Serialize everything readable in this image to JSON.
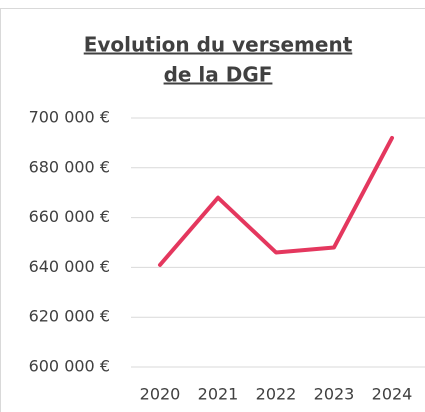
{
  "chart_data": {
    "type": "line",
    "title": [
      "Evolution du versement",
      "de la DGF"
    ],
    "categories": [
      "2020",
      "2021",
      "2022",
      "2023",
      "2024"
    ],
    "series": [
      {
        "name": "DGF",
        "color": "#e4375e",
        "values": [
          641000,
          668000,
          646000,
          648000,
          692000
        ]
      }
    ],
    "ylim": [
      600000,
      700000
    ],
    "yticks": [
      {
        "value": 600000,
        "label": "600 000 €"
      },
      {
        "value": 620000,
        "label": "620 000 €"
      },
      {
        "value": 640000,
        "label": "640 000 €"
      },
      {
        "value": 660000,
        "label": "660 000 €"
      },
      {
        "value": 680000,
        "label": "680 000 €"
      },
      {
        "value": 700000,
        "label": "700 000 €"
      }
    ],
    "grid": true
  }
}
